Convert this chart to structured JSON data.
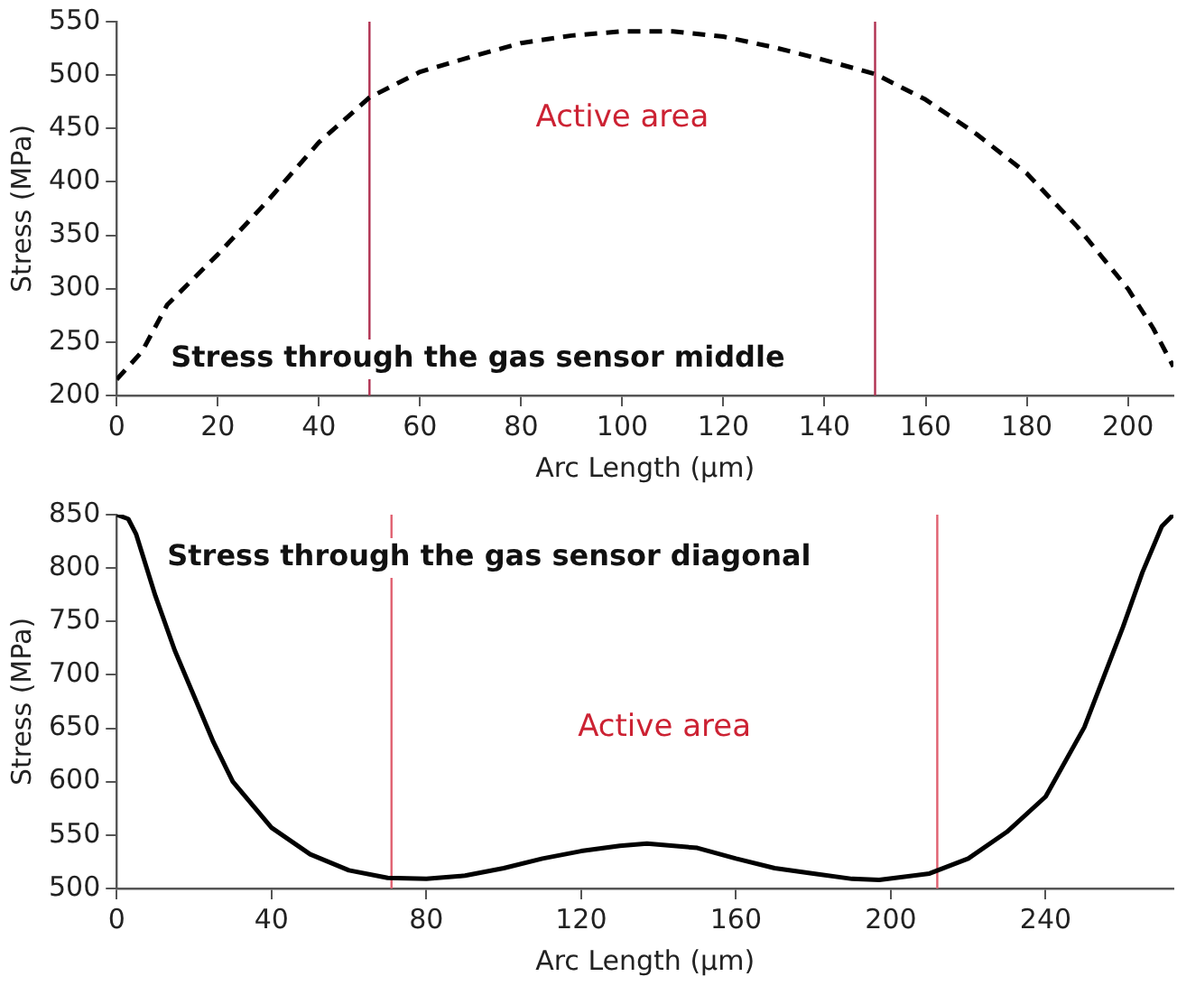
{
  "chart_data": [
    {
      "type": "line",
      "title": "Stress through the gas sensor middle",
      "xlabel": "Arc Length (µm)",
      "ylabel": "Stress (MPa)",
      "x": [
        0,
        5,
        10,
        20,
        30,
        40,
        50,
        60,
        70,
        80,
        90,
        100,
        110,
        120,
        130,
        140,
        150,
        160,
        170,
        180,
        190,
        200,
        205,
        209
      ],
      "values": [
        215,
        241,
        285,
        332,
        383,
        437,
        479,
        503,
        517,
        530,
        537,
        541,
        541,
        536,
        526,
        514,
        501,
        477,
        445,
        408,
        358,
        300,
        263,
        227
      ],
      "color": "#000000",
      "line_style": "dashed",
      "xlim": [
        0,
        209
      ],
      "xticks": [
        0,
        20,
        40,
        60,
        80,
        100,
        120,
        140,
        160,
        180,
        200
      ],
      "ylim": [
        200,
        550
      ],
      "yticks": [
        200,
        250,
        300,
        350,
        400,
        450,
        500,
        550
      ],
      "ref_lines": [
        {
          "axis": "x",
          "value": 50,
          "color": "#b03050"
        },
        {
          "axis": "x",
          "value": 150,
          "color": "#b03050"
        }
      ],
      "annotations": [
        "Active area"
      ]
    },
    {
      "type": "line",
      "title": "Stress through the gas sensor diagonal",
      "xlabel": "Arc Length (µm)",
      "ylabel": "Stress (MPa)",
      "x": [
        0,
        3,
        5,
        10,
        15,
        20,
        25,
        30,
        40,
        50,
        60,
        70,
        80,
        90,
        100,
        110,
        120,
        130,
        137,
        150,
        160,
        170,
        180,
        190,
        197,
        210,
        220,
        230,
        240,
        250,
        260,
        265,
        270,
        273
      ],
      "values": [
        850,
        846,
        832,
        774,
        723,
        680,
        637,
        600,
        557,
        532,
        517,
        510,
        509,
        512,
        519,
        528,
        535,
        540,
        542,
        538,
        528,
        519,
        514,
        509,
        508,
        514,
        528,
        553,
        586,
        651,
        745,
        796,
        839,
        850
      ],
      "color": "#000000",
      "line_style": "solid",
      "xlim": [
        0,
        273
      ],
      "xticks": [
        0,
        40,
        80,
        120,
        160,
        200,
        240
      ],
      "ylim": [
        500,
        850
      ],
      "yticks": [
        500,
        550,
        600,
        650,
        700,
        750,
        800,
        850
      ],
      "ref_lines": [
        {
          "axis": "x",
          "value": 71,
          "color": "#e06070"
        },
        {
          "axis": "x",
          "value": 212,
          "color": "#e06070"
        }
      ],
      "annotations": [
        "Active area"
      ]
    }
  ]
}
